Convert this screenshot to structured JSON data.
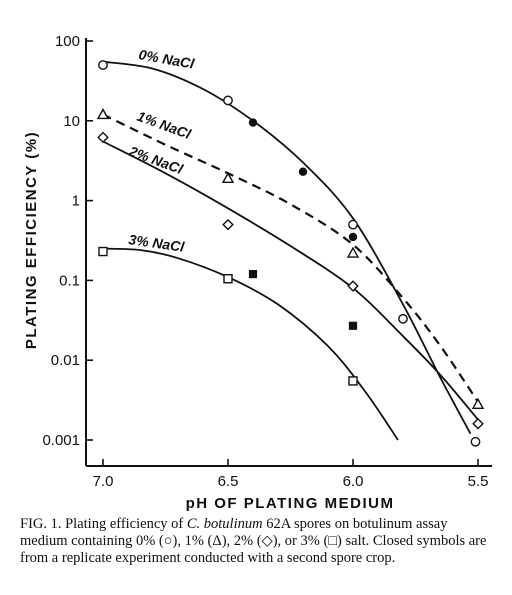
{
  "chart_data": {
    "type": "line",
    "xlabel": "pH OF PLATING MEDIUM",
    "ylabel": "PLATING EFFICIENCY (%)",
    "log_y": true,
    "xlim": [
      7.0,
      5.5
    ],
    "ylim": [
      0.001,
      100
    ],
    "x_ticks": [
      "7.0",
      "6.5",
      "6.0",
      "5.5"
    ],
    "y_ticks": [
      "0.001",
      "0.01",
      "0.1",
      "1",
      "10",
      "100"
    ],
    "x_tick_values": [
      7.0,
      6.5,
      6.0,
      5.5
    ],
    "y_tick_values": [
      0.001,
      0.01,
      0.1,
      1,
      10,
      100
    ],
    "series": [
      {
        "name": "0% NaCl",
        "marker": "circle",
        "line": "solid",
        "open_points": [
          {
            "x": 7.0,
            "y": 50
          },
          {
            "x": 6.5,
            "y": 18
          },
          {
            "x": 6.0,
            "y": 0.5
          },
          {
            "x": 5.8,
            "y": 0.033
          },
          {
            "x": 5.51,
            "y": 0.00095
          }
        ],
        "closed_points": [
          {
            "x": 6.4,
            "y": 9.5
          },
          {
            "x": 6.2,
            "y": 2.3
          },
          {
            "x": 6.0,
            "y": 0.35
          }
        ],
        "curve": [
          {
            "x": 7.0,
            "y": 55
          },
          {
            "x": 6.8,
            "y": 45
          },
          {
            "x": 6.6,
            "y": 25
          },
          {
            "x": 6.4,
            "y": 10
          },
          {
            "x": 6.2,
            "y": 3
          },
          {
            "x": 6.0,
            "y": 0.6
          },
          {
            "x": 5.8,
            "y": 0.05
          },
          {
            "x": 5.65,
            "y": 0.006
          },
          {
            "x": 5.53,
            "y": 0.0012
          }
        ]
      },
      {
        "name": "1% NaCl",
        "marker": "triangle",
        "line": "dashed",
        "open_points": [
          {
            "x": 7.0,
            "y": 12
          },
          {
            "x": 6.5,
            "y": 1.9
          },
          {
            "x": 6.0,
            "y": 0.22
          },
          {
            "x": 5.5,
            "y": 0.0028
          }
        ],
        "closed_points": [],
        "curve": [
          {
            "x": 7.0,
            "y": 12
          },
          {
            "x": 6.75,
            "y": 5
          },
          {
            "x": 6.5,
            "y": 2.2
          },
          {
            "x": 6.25,
            "y": 0.9
          },
          {
            "x": 6.0,
            "y": 0.28
          },
          {
            "x": 5.8,
            "y": 0.06
          },
          {
            "x": 5.65,
            "y": 0.015
          },
          {
            "x": 5.5,
            "y": 0.003
          }
        ]
      },
      {
        "name": "2% NaCl",
        "marker": "diamond",
        "line": "solid",
        "open_points": [
          {
            "x": 7.0,
            "y": 6.2
          },
          {
            "x": 6.5,
            "y": 0.5
          },
          {
            "x": 6.0,
            "y": 0.085
          },
          {
            "x": 5.5,
            "y": 0.0016
          }
        ],
        "closed_points": [],
        "curve": [
          {
            "x": 7.0,
            "y": 5.5
          },
          {
            "x": 6.75,
            "y": 2.2
          },
          {
            "x": 6.5,
            "y": 0.8
          },
          {
            "x": 6.25,
            "y": 0.27
          },
          {
            "x": 6.0,
            "y": 0.08
          },
          {
            "x": 5.8,
            "y": 0.02
          },
          {
            "x": 5.65,
            "y": 0.0065
          },
          {
            "x": 5.5,
            "y": 0.0018
          }
        ]
      },
      {
        "name": "3% NaCl",
        "marker": "square",
        "line": "solid",
        "open_points": [
          {
            "x": 7.0,
            "y": 0.23
          },
          {
            "x": 6.5,
            "y": 0.105
          },
          {
            "x": 6.0,
            "y": 0.0055
          }
        ],
        "closed_points": [
          {
            "x": 6.4,
            "y": 0.12
          },
          {
            "x": 6.0,
            "y": 0.027
          }
        ],
        "curve": [
          {
            "x": 7.0,
            "y": 0.25
          },
          {
            "x": 6.85,
            "y": 0.24
          },
          {
            "x": 6.7,
            "y": 0.19
          },
          {
            "x": 6.5,
            "y": 0.11
          },
          {
            "x": 6.3,
            "y": 0.05
          },
          {
            "x": 6.1,
            "y": 0.015
          },
          {
            "x": 5.95,
            "y": 0.004
          },
          {
            "x": 5.82,
            "y": 0.001
          }
        ]
      }
    ],
    "series_labels": [
      "0% NaCl",
      "1% NaCl",
      "2% NaCl",
      "3% NaCl"
    ]
  },
  "caption": {
    "prefix": "FIG. 1.  Plating efficiency of ",
    "organism": "C. botulinum",
    "suffix": " 62A spores on botulinum assay medium containing 0% (○), 1% (Δ), 2% (◇), or 3% (□) salt. Closed symbols are from a replicate experiment conducted with a second spore crop."
  }
}
